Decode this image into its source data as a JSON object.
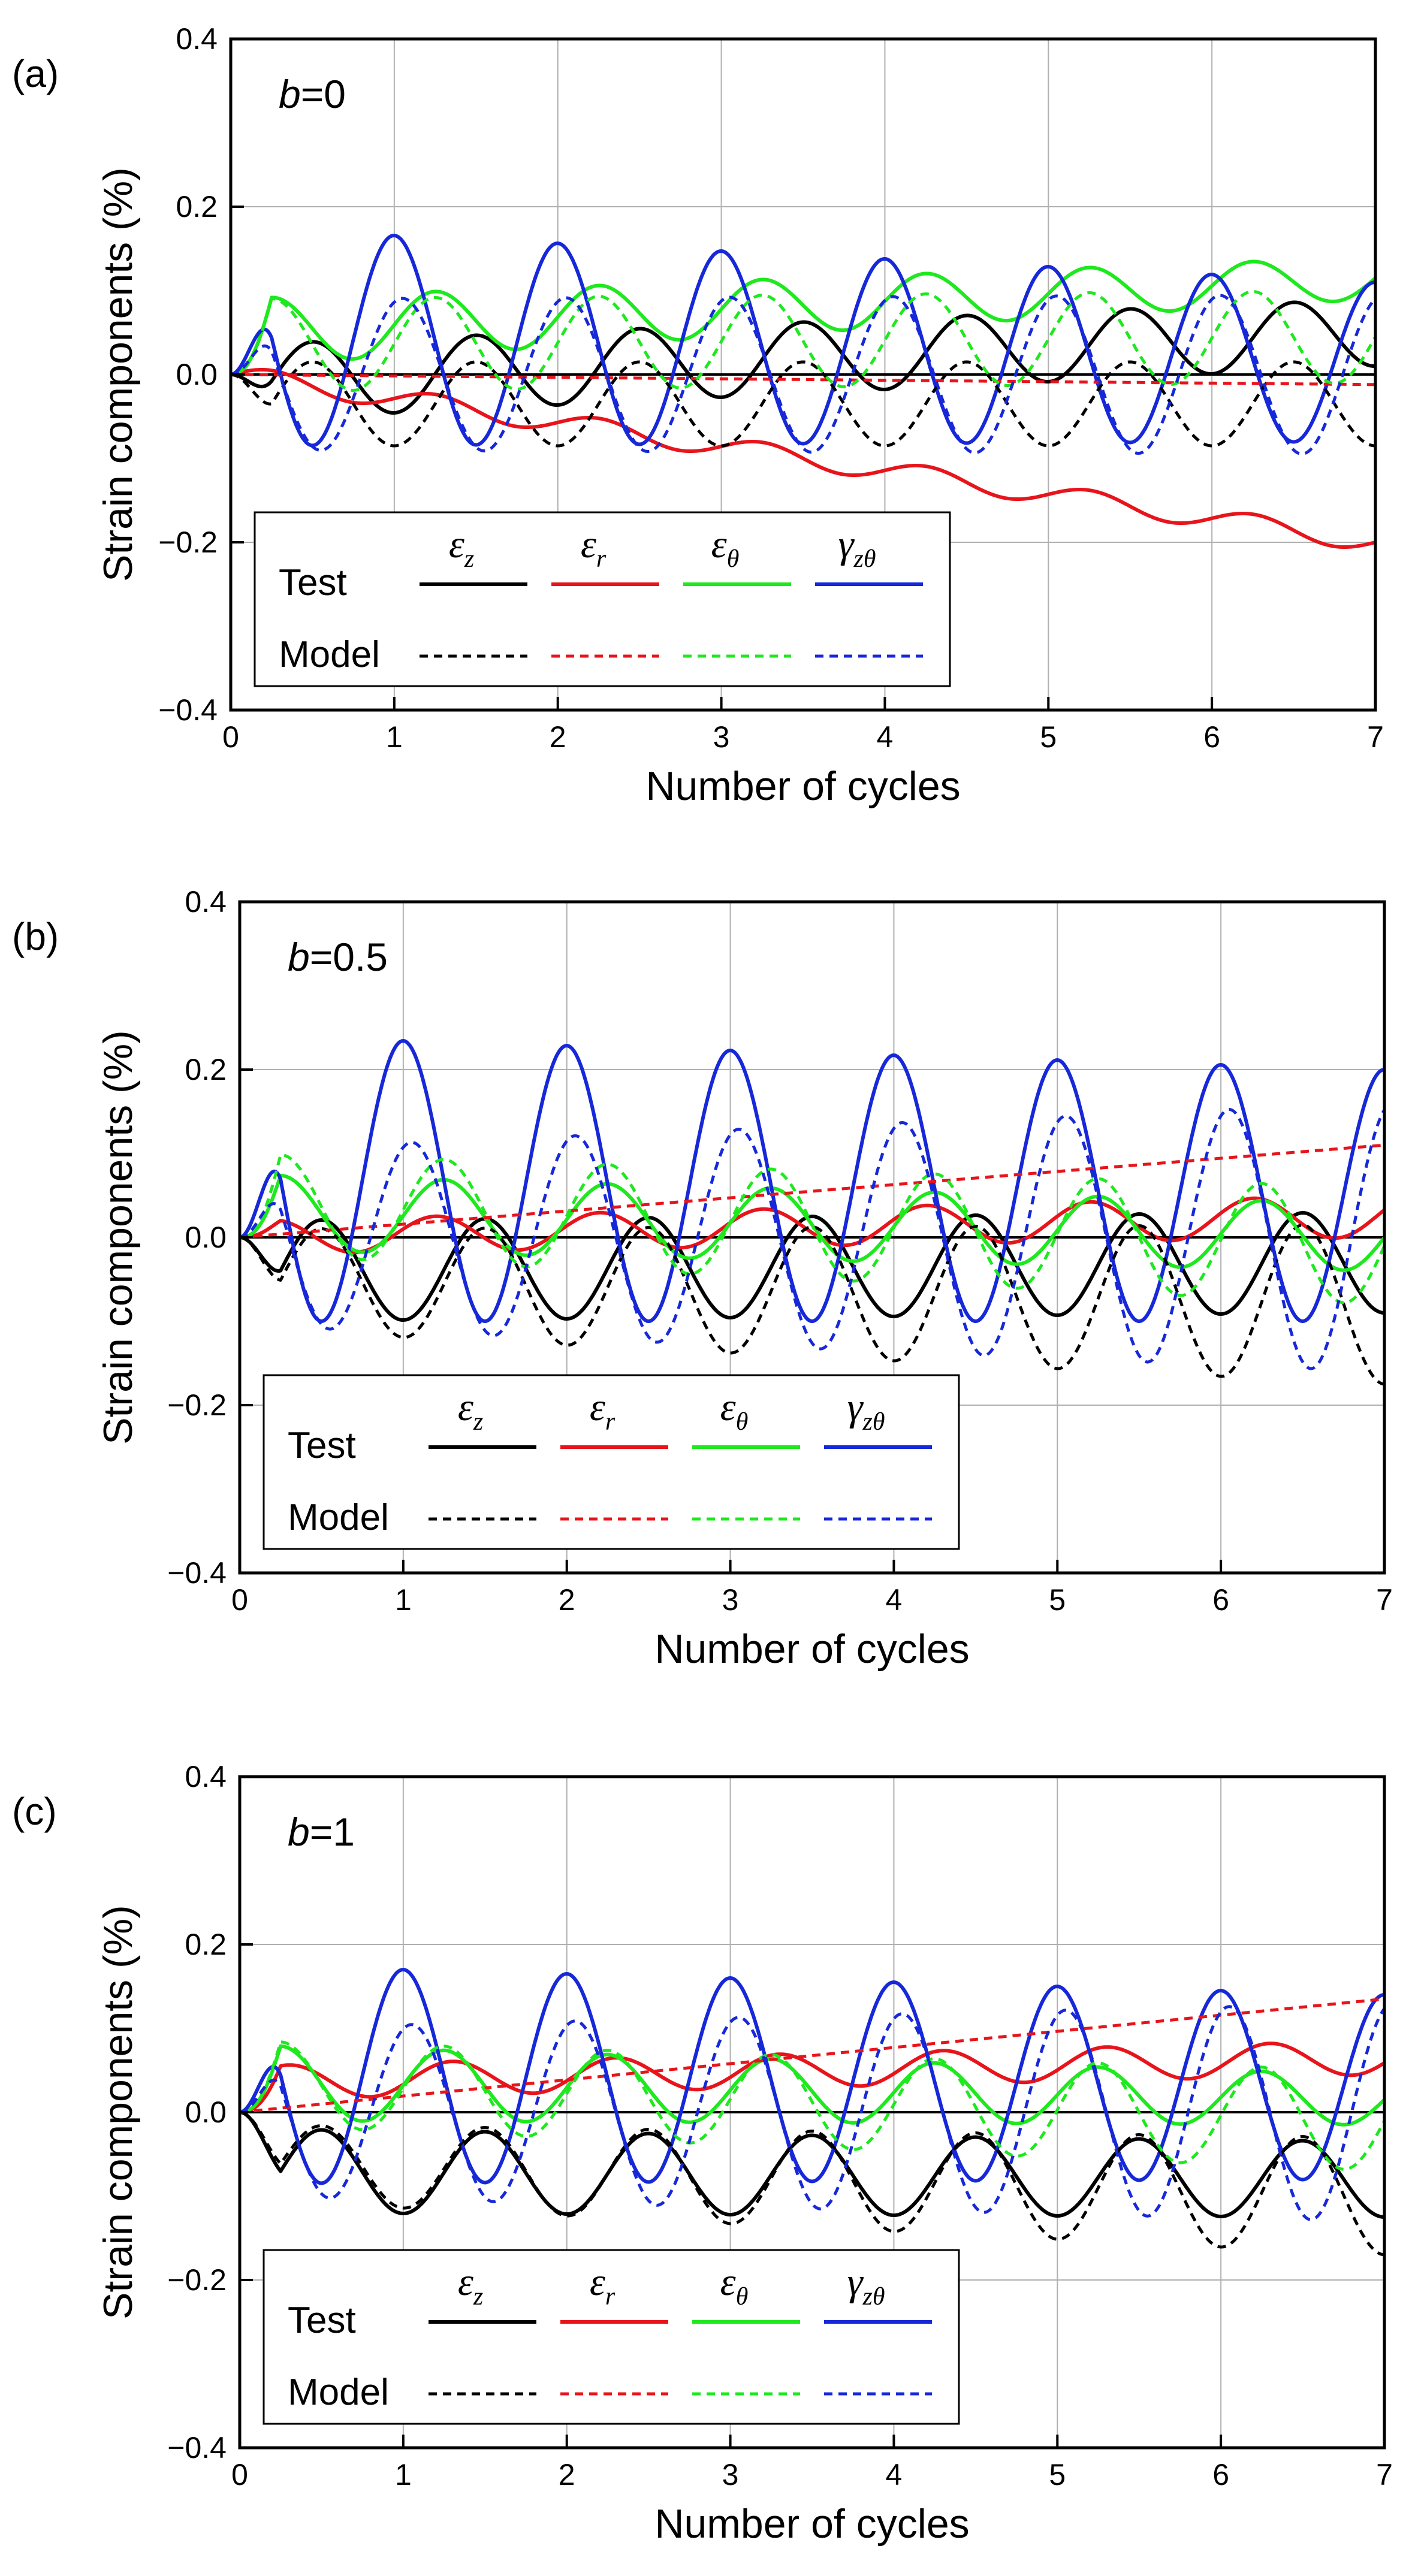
{
  "chart_data": [
    {
      "panel_label": "(a)",
      "annotation": "b=0",
      "annotation_var": "b",
      "annotation_value": "=0",
      "type": "line",
      "xlabel": "Number of cycles",
      "ylabel": "Strain components (%)",
      "xlim": [
        0,
        7
      ],
      "ylim": [
        -0.4,
        0.4
      ],
      "x_ticks": [
        "0",
        "1",
        "2",
        "3",
        "4",
        "5",
        "6",
        "7"
      ],
      "y_ticks": [
        "-0.4",
        "-0.2",
        "0.0",
        "0.2",
        "0.4"
      ],
      "grid": true,
      "legend": {
        "position": "bottom-left",
        "row_labels": [
          "Test",
          "Model"
        ],
        "symbols": [
          "ε",
          "ε",
          "ε",
          "γ"
        ],
        "subscripts": [
          "z",
          "r",
          "θ",
          "zθ"
        ]
      },
      "colors": {
        "ez": "#000000",
        "er": "#e8141b",
        "et": "#1ee81e",
        "gzt": "#1628d8"
      },
      "curves": {
        "test": {
          "ez": {
            "mode": "sine",
            "amp": [
              0.045,
              0.04
            ],
            "offset": [
              -0.01,
              0.05
            ],
            "phase": 0.5
          },
          "er": {
            "mode": "trend",
            "start": 0.0,
            "end": -0.2,
            "ripple": 0.012
          },
          "et": {
            "mode": "sine",
            "amp": [
              0.04,
              0.025
            ],
            "offset": [
              0.05,
              0.115
            ],
            "phase": 0.25
          },
          "gzt": {
            "mode": "sine",
            "amp": [
              0.13,
              0.095
            ],
            "offset": [
              0.045,
              0.015
            ],
            "phase": 0.0
          }
        },
        "model": {
          "ez": {
            "mode": "sine",
            "amp": [
              0.05,
              0.05
            ],
            "offset": [
              -0.035,
              -0.035
            ],
            "phase": 0.5
          },
          "er": {
            "mode": "trend",
            "start": 0.0,
            "end": -0.012,
            "ripple": 0.0
          },
          "et": {
            "mode": "sine",
            "amp": [
              0.055,
              0.055
            ],
            "offset": [
              0.035,
              0.045
            ],
            "phase": 0.25
          },
          "gzt": {
            "mode": "sine",
            "amp": [
              0.09,
              0.095
            ],
            "offset": [
              0.0,
              0.0
            ],
            "phase": 0.05
          }
        }
      }
    },
    {
      "panel_label": "(b)",
      "annotation": "b=0.5",
      "annotation_var": "b",
      "annotation_value": "=0.5",
      "type": "line",
      "xlabel": "Number of cycles",
      "ylabel": "Strain components (%)",
      "xlim": [
        0,
        7
      ],
      "ylim": [
        -0.4,
        0.4
      ],
      "x_ticks": [
        "0",
        "1",
        "2",
        "3",
        "4",
        "5",
        "6",
        "7"
      ],
      "y_ticks": [
        "-0.4",
        "-0.2",
        "0.0",
        "0.2",
        "0.4"
      ],
      "grid": true,
      "legend": {
        "position": "bottom-left",
        "row_labels": [
          "Test",
          "Model"
        ],
        "symbols": [
          "ε",
          "ε",
          "ε",
          "γ"
        ],
        "subscripts": [
          "z",
          "r",
          "θ",
          "zθ"
        ]
      },
      "colors": {
        "ez": "#000000",
        "er": "#e8141b",
        "et": "#1ee81e",
        "gzt": "#1628d8"
      },
      "curves": {
        "test": {
          "ez": {
            "mode": "sine",
            "amp": [
              0.06,
              0.06
            ],
            "offset": [
              -0.04,
              -0.03
            ],
            "phase": 0.5
          },
          "er": {
            "mode": "sine",
            "amp": [
              0.02,
              0.025
            ],
            "offset": [
              0.0,
              0.025
            ],
            "phase": 0.2
          },
          "et": {
            "mode": "sine",
            "amp": [
              0.045,
              0.04
            ],
            "offset": [
              0.03,
              0.0
            ],
            "phase": 0.25
          },
          "gzt": {
            "mode": "sine",
            "amp": [
              0.17,
              0.15
            ],
            "offset": [
              0.07,
              0.05
            ],
            "phase": 0.0
          }
        },
        "model": {
          "ez": {
            "mode": "sine",
            "amp": [
              0.06,
              0.095
            ],
            "offset": [
              -0.05,
              -0.08
            ],
            "phase": 0.5
          },
          "er": {
            "mode": "trend",
            "start": 0.0,
            "end": 0.11,
            "ripple": 0.0
          },
          "et": {
            "mode": "sine",
            "amp": [
              0.06,
              0.07
            ],
            "offset": [
              0.04,
              -0.01
            ],
            "phase": 0.25
          },
          "gzt": {
            "mode": "sine",
            "amp": [
              0.105,
              0.16
            ],
            "offset": [
              0.0,
              0.0
            ],
            "phase": 0.05
          }
        }
      }
    },
    {
      "panel_label": "(c)",
      "annotation": "b=1",
      "annotation_var": "b",
      "annotation_value": "=1",
      "type": "line",
      "xlabel": "Number of cycles",
      "ylabel": "Strain components (%)",
      "xlim": [
        0,
        7
      ],
      "ylim": [
        -0.4,
        0.4
      ],
      "x_ticks": [
        "0",
        "1",
        "2",
        "3",
        "4",
        "5",
        "6",
        "7"
      ],
      "y_ticks": [
        "-0.4",
        "-0.2",
        "0.0",
        "0.2",
        "0.4"
      ],
      "grid": true,
      "legend": {
        "position": "bottom-left",
        "row_labels": [
          "Test",
          "Model"
        ],
        "symbols": [
          "ε",
          "ε",
          "ε",
          "γ"
        ],
        "subscripts": [
          "z",
          "r",
          "θ",
          "zθ"
        ]
      },
      "colors": {
        "ez": "#000000",
        "er": "#e8141b",
        "et": "#1ee81e",
        "gzt": "#1628d8"
      },
      "curves": {
        "test": {
          "ez": {
            "mode": "sine",
            "amp": [
              0.05,
              0.045
            ],
            "offset": [
              -0.07,
              -0.08
            ],
            "phase": 0.5
          },
          "er": {
            "mode": "sine",
            "amp": [
              0.02,
              0.02
            ],
            "offset": [
              0.035,
              0.065
            ],
            "phase": 0.3
          },
          "et": {
            "mode": "sine",
            "amp": [
              0.045,
              0.03
            ],
            "offset": [
              0.035,
              0.015
            ],
            "phase": 0.25
          },
          "gzt": {
            "mode": "sine",
            "amp": [
              0.13,
              0.11
            ],
            "offset": [
              0.045,
              0.03
            ],
            "phase": 0.0
          }
        },
        "model": {
          "ez": {
            "mode": "sine",
            "amp": [
              0.045,
              0.07
            ],
            "offset": [
              -0.06,
              -0.1
            ],
            "phase": 0.5
          },
          "er": {
            "mode": "trend",
            "start": 0.0,
            "end": 0.135,
            "ripple": 0.0
          },
          "et": {
            "mode": "sine",
            "amp": [
              0.05,
              0.06
            ],
            "offset": [
              0.035,
              -0.01
            ],
            "phase": 0.25
          },
          "gzt": {
            "mode": "sine",
            "amp": [
              0.1,
              0.13
            ],
            "offset": [
              0.0,
              0.0
            ],
            "phase": 0.05
          }
        }
      }
    }
  ]
}
